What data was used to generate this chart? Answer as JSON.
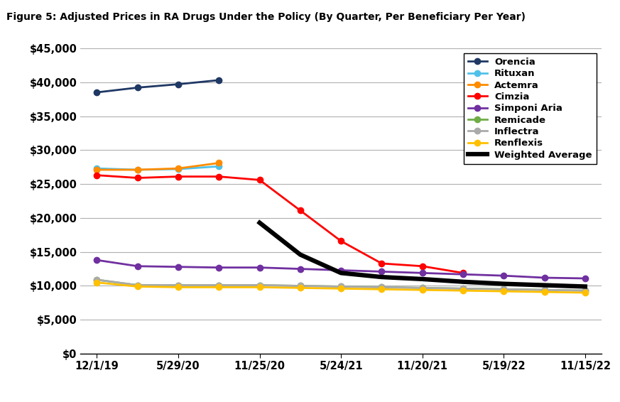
{
  "title": "Figure 5: Adjusted Prices in RA Drugs Under the Policy (By Quarter, Per Beneficiary Per Year)",
  "x_labels": [
    "12/1/19",
    "5/29/20",
    "11/25/20",
    "5/24/21",
    "11/20/21",
    "5/19/22",
    "11/15/22"
  ],
  "x_tick_positions": [
    0,
    2,
    4,
    6,
    8,
    10,
    12
  ],
  "series": {
    "Orencia": {
      "color": "#1F3864",
      "values": [
        38500,
        39200,
        39700,
        40300,
        null,
        null,
        null,
        null,
        null,
        null,
        null,
        null,
        null
      ],
      "marker": "o",
      "linewidth": 2.0,
      "zorder": 3
    },
    "Rituxan": {
      "color": "#4FC1E9",
      "values": [
        27300,
        27100,
        27200,
        27600,
        null,
        null,
        null,
        null,
        null,
        null,
        null,
        null,
        null
      ],
      "marker": "o",
      "linewidth": 2.0,
      "zorder": 3
    },
    "Actemra": {
      "color": "#FF8C00",
      "values": [
        27100,
        27100,
        27300,
        28100,
        null,
        null,
        null,
        null,
        null,
        null,
        null,
        null,
        null
      ],
      "marker": "o",
      "linewidth": 2.0,
      "zorder": 3
    },
    "Cimzia": {
      "color": "#FF0000",
      "values": [
        26300,
        25900,
        26100,
        26100,
        25600,
        21100,
        16600,
        13300,
        12900,
        11900,
        null,
        null,
        null
      ],
      "marker": "o",
      "linewidth": 2.0,
      "zorder": 3
    },
    "Simponi Aria": {
      "color": "#7030A0",
      "values": [
        13800,
        12900,
        12800,
        12700,
        12700,
        12500,
        12300,
        12100,
        11900,
        11700,
        11500,
        11200,
        11100
      ],
      "marker": "o",
      "linewidth": 2.0,
      "zorder": 3
    },
    "Remicade": {
      "color": "#70AD47",
      "values": [
        10900,
        10100,
        10100,
        10100,
        10100,
        10000,
        9900,
        9800,
        9700,
        9600,
        9500,
        9400,
        9300
      ],
      "marker": "o",
      "linewidth": 2.0,
      "zorder": 3
    },
    "Inflectra": {
      "color": "#AAAAAA",
      "values": [
        10900,
        10100,
        10100,
        10100,
        10100,
        10000,
        9900,
        9800,
        9700,
        9600,
        9500,
        9400,
        9300
      ],
      "marker": "o",
      "linewidth": 2.0,
      "zorder": 3
    },
    "Renflexis": {
      "color": "#FFC000",
      "values": [
        10500,
        9900,
        9800,
        9800,
        9800,
        9700,
        9600,
        9500,
        9400,
        9300,
        9200,
        9100,
        9000
      ],
      "marker": "o",
      "linewidth": 2.0,
      "zorder": 3
    },
    "Weighted Average": {
      "color": "#000000",
      "values": [
        null,
        null,
        null,
        null,
        19300,
        14600,
        11900,
        11300,
        11000,
        10600,
        10300,
        10100,
        9900
      ],
      "marker": null,
      "linewidth": 4.5,
      "zorder": 4
    }
  },
  "ylim": [
    0,
    45000
  ],
  "yticks": [
    0,
    5000,
    10000,
    15000,
    20000,
    25000,
    30000,
    35000,
    40000,
    45000
  ],
  "background_color": "#FFFFFF",
  "num_points": 13,
  "figsize": [
    8.73,
    5.66
  ],
  "dpi": 100
}
